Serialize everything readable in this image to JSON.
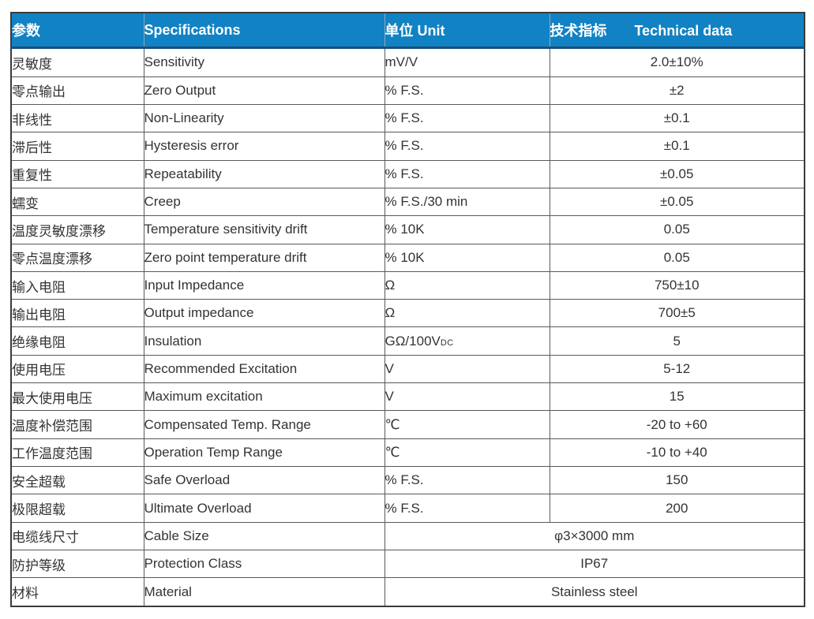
{
  "table": {
    "header": {
      "param_cn": "参数",
      "specifications": "Specifications",
      "unit": "单位 Unit",
      "technical_cn": "技术指标",
      "technical_en": "Technical data"
    },
    "rows": [
      {
        "cn": "灵敏度",
        "en": "Sensitivity",
        "unit": "mV/V",
        "unit_sub": "",
        "value": "2.0±10%",
        "merged": false
      },
      {
        "cn": "零点输出",
        "en": "Zero Output",
        "unit": "% F.S.",
        "unit_sub": "",
        "value": "±2",
        "merged": false
      },
      {
        "cn": "非线性",
        "en": "Non-Linearity",
        "unit": "% F.S.",
        "unit_sub": "",
        "value": "±0.1",
        "merged": false
      },
      {
        "cn": "滞后性",
        "en": "Hysteresis error",
        "unit": "% F.S.",
        "unit_sub": "",
        "value": "±0.1",
        "merged": false
      },
      {
        "cn": "重复性",
        "en": "Repeatability",
        "unit": "% F.S.",
        "unit_sub": "",
        "value": "±0.05",
        "merged": false
      },
      {
        "cn": "蠕变",
        "en": "Creep",
        "unit": "% F.S./30 min",
        "unit_sub": "",
        "value": "±0.05",
        "merged": false
      },
      {
        "cn": "温度灵敏度漂移",
        "en": "Temperature sensitivity drift",
        "unit": "% 10K",
        "unit_sub": "",
        "value": "0.05",
        "merged": false
      },
      {
        "cn": "零点温度漂移",
        "en": "Zero point temperature drift",
        "unit": "% 10K",
        "unit_sub": "",
        "value": "0.05",
        "merged": false
      },
      {
        "cn": "输入电阻",
        "en": "Input Impedance",
        "unit": "Ω",
        "unit_sub": "",
        "value": "750±10",
        "merged": false
      },
      {
        "cn": "输出电阻",
        "en": "Output impedance",
        "unit": "Ω",
        "unit_sub": "",
        "value": "700±5",
        "merged": false
      },
      {
        "cn": "绝缘电阻",
        "en": "Insulation",
        "unit": "GΩ/100V",
        "unit_sub": "DC",
        "value": "5",
        "merged": false
      },
      {
        "cn": "使用电压",
        "en": "Recommended Excitation",
        "unit": "V",
        "unit_sub": "",
        "value": "5-12",
        "merged": false
      },
      {
        "cn": "最大使用电压",
        "en": "Maximum excitation",
        "unit": "V",
        "unit_sub": "",
        "value": "15",
        "merged": false
      },
      {
        "cn": "温度补偿范围",
        "en": "Compensated Temp. Range",
        "unit": "℃",
        "unit_sub": "",
        "value": "-20 to +60",
        "merged": false
      },
      {
        "cn": "工作温度范围",
        "en": "Operation Temp Range",
        "unit": "℃",
        "unit_sub": "",
        "value": "-10 to +40",
        "merged": false
      },
      {
        "cn": "安全超载",
        "en": "Safe Overload",
        "unit": "% F.S.",
        "unit_sub": "",
        "value": "150",
        "merged": false
      },
      {
        "cn": "极限超载",
        "en": "Ultimate Overload",
        "unit": "% F.S.",
        "unit_sub": "",
        "value": "200",
        "merged": false
      },
      {
        "cn": "电缆线尺寸",
        "en": "Cable Size",
        "unit": "",
        "unit_sub": "",
        "value": "φ3×3000 mm",
        "merged": true
      },
      {
        "cn": "防护等级",
        "en": "Protection Class",
        "unit": "",
        "unit_sub": "",
        "value": "IP67",
        "merged": true
      },
      {
        "cn": "材料",
        "en": "Material",
        "unit": "",
        "unit_sub": "",
        "value": "Stainless steel",
        "merged": true
      }
    ],
    "colors": {
      "header_bg": "#1182c4",
      "header_text": "#ffffff",
      "header_bottom_border": "#1b4e79",
      "grid_line": "#58595b",
      "outer_border": "#3b3b3b",
      "body_text": "#333333"
    }
  }
}
